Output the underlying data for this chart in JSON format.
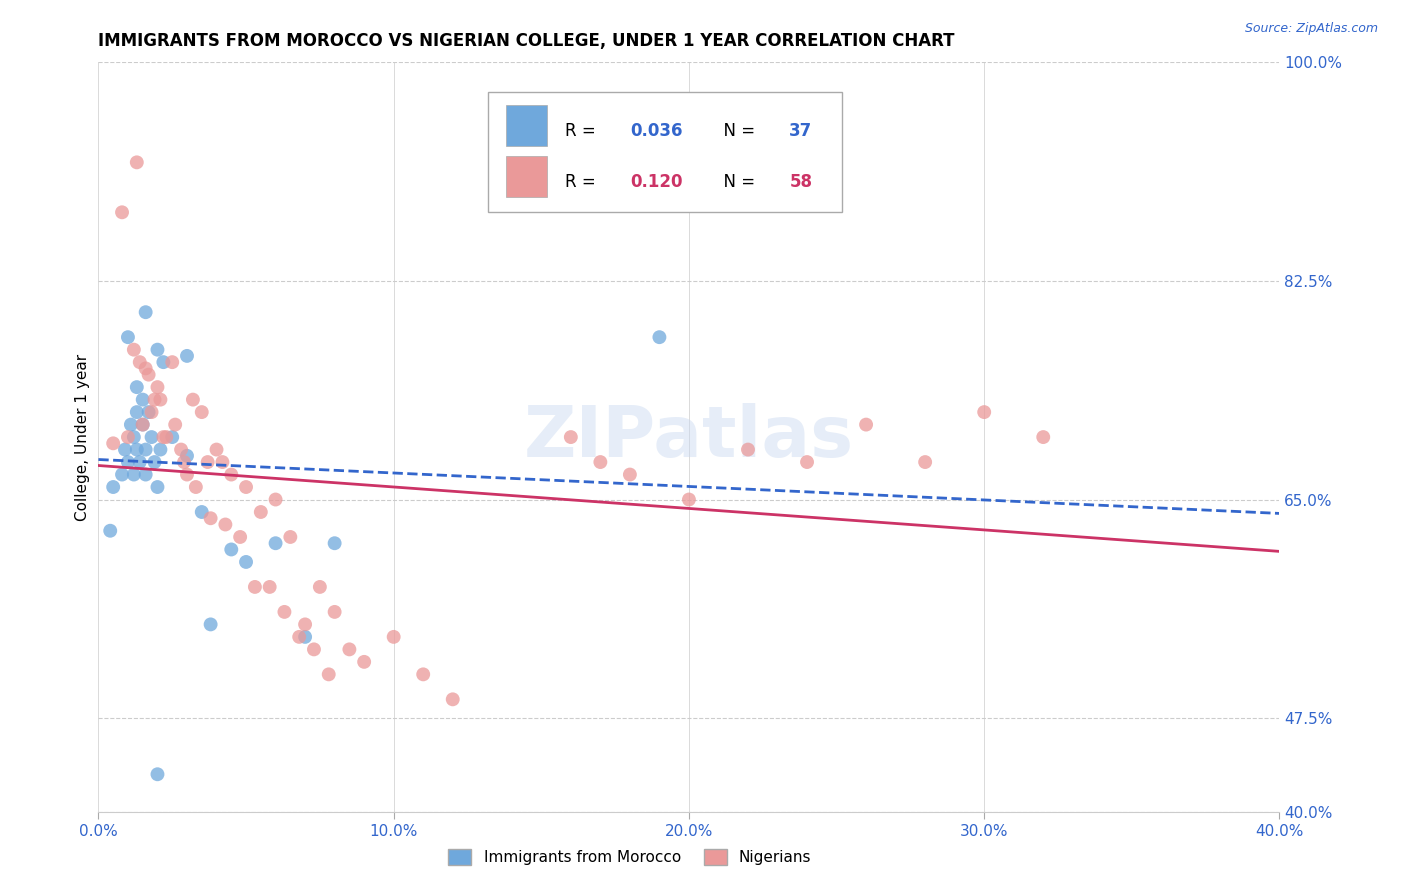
{
  "title": "IMMIGRANTS FROM MOROCCO VS NIGERIAN COLLEGE, UNDER 1 YEAR CORRELATION CHART",
  "source": "Source: ZipAtlas.com",
  "ylabel": "College, Under 1 year",
  "xlim": [
    0.0,
    0.4
  ],
  "ylim": [
    0.4,
    1.0
  ],
  "xticks": [
    0.0,
    0.1,
    0.2,
    0.3,
    0.4
  ],
  "yticks_right": [
    1.0,
    0.825,
    0.65,
    0.475,
    0.4
  ],
  "ytick_labels_right": [
    "100.0%",
    "82.5%",
    "65.0%",
    "47.5%",
    "40.0%"
  ],
  "xtick_labels": [
    "0.0%",
    "10.0%",
    "20.0%",
    "30.0%",
    "40.0%"
  ],
  "legend_label1": "Immigrants from Morocco",
  "legend_label2": "Nigerians",
  "blue_color": "#6fa8dc",
  "pink_color": "#ea9999",
  "blue_line_color": "#3366cc",
  "red_line_color": "#cc3366",
  "watermark": "ZIPatlas",
  "blue_x": [
    0.004,
    0.005,
    0.008,
    0.009,
    0.01,
    0.011,
    0.012,
    0.012,
    0.013,
    0.013,
    0.014,
    0.015,
    0.015,
    0.016,
    0.016,
    0.017,
    0.018,
    0.019,
    0.02,
    0.021,
    0.022,
    0.025,
    0.03,
    0.035,
    0.038,
    0.045,
    0.05,
    0.06,
    0.07,
    0.08,
    0.01,
    0.013,
    0.016,
    0.02,
    0.03,
    0.19,
    0.02
  ],
  "blue_y": [
    0.625,
    0.66,
    0.67,
    0.69,
    0.68,
    0.71,
    0.7,
    0.67,
    0.69,
    0.72,
    0.68,
    0.73,
    0.71,
    0.67,
    0.69,
    0.72,
    0.7,
    0.68,
    0.66,
    0.69,
    0.76,
    0.7,
    0.685,
    0.64,
    0.55,
    0.61,
    0.6,
    0.615,
    0.54,
    0.615,
    0.78,
    0.74,
    0.8,
    0.77,
    0.765,
    0.78,
    0.43
  ],
  "pink_x": [
    0.005,
    0.008,
    0.01,
    0.012,
    0.015,
    0.016,
    0.018,
    0.02,
    0.022,
    0.025,
    0.028,
    0.03,
    0.032,
    0.035,
    0.037,
    0.04,
    0.042,
    0.045,
    0.05,
    0.055,
    0.06,
    0.065,
    0.07,
    0.075,
    0.08,
    0.085,
    0.09,
    0.1,
    0.11,
    0.12,
    0.013,
    0.014,
    0.017,
    0.019,
    0.021,
    0.023,
    0.026,
    0.029,
    0.033,
    0.038,
    0.043,
    0.048,
    0.053,
    0.058,
    0.063,
    0.068,
    0.073,
    0.078,
    0.16,
    0.17,
    0.18,
    0.2,
    0.22,
    0.24,
    0.26,
    0.28,
    0.3,
    0.32
  ],
  "pink_y": [
    0.695,
    0.88,
    0.7,
    0.77,
    0.71,
    0.755,
    0.72,
    0.74,
    0.7,
    0.76,
    0.69,
    0.67,
    0.73,
    0.72,
    0.68,
    0.69,
    0.68,
    0.67,
    0.66,
    0.64,
    0.65,
    0.62,
    0.55,
    0.58,
    0.56,
    0.53,
    0.52,
    0.54,
    0.51,
    0.49,
    0.92,
    0.76,
    0.75,
    0.73,
    0.73,
    0.7,
    0.71,
    0.68,
    0.66,
    0.635,
    0.63,
    0.62,
    0.58,
    0.58,
    0.56,
    0.54,
    0.53,
    0.51,
    0.7,
    0.68,
    0.67,
    0.65,
    0.69,
    0.68,
    0.71,
    0.68,
    0.72,
    0.7
  ]
}
